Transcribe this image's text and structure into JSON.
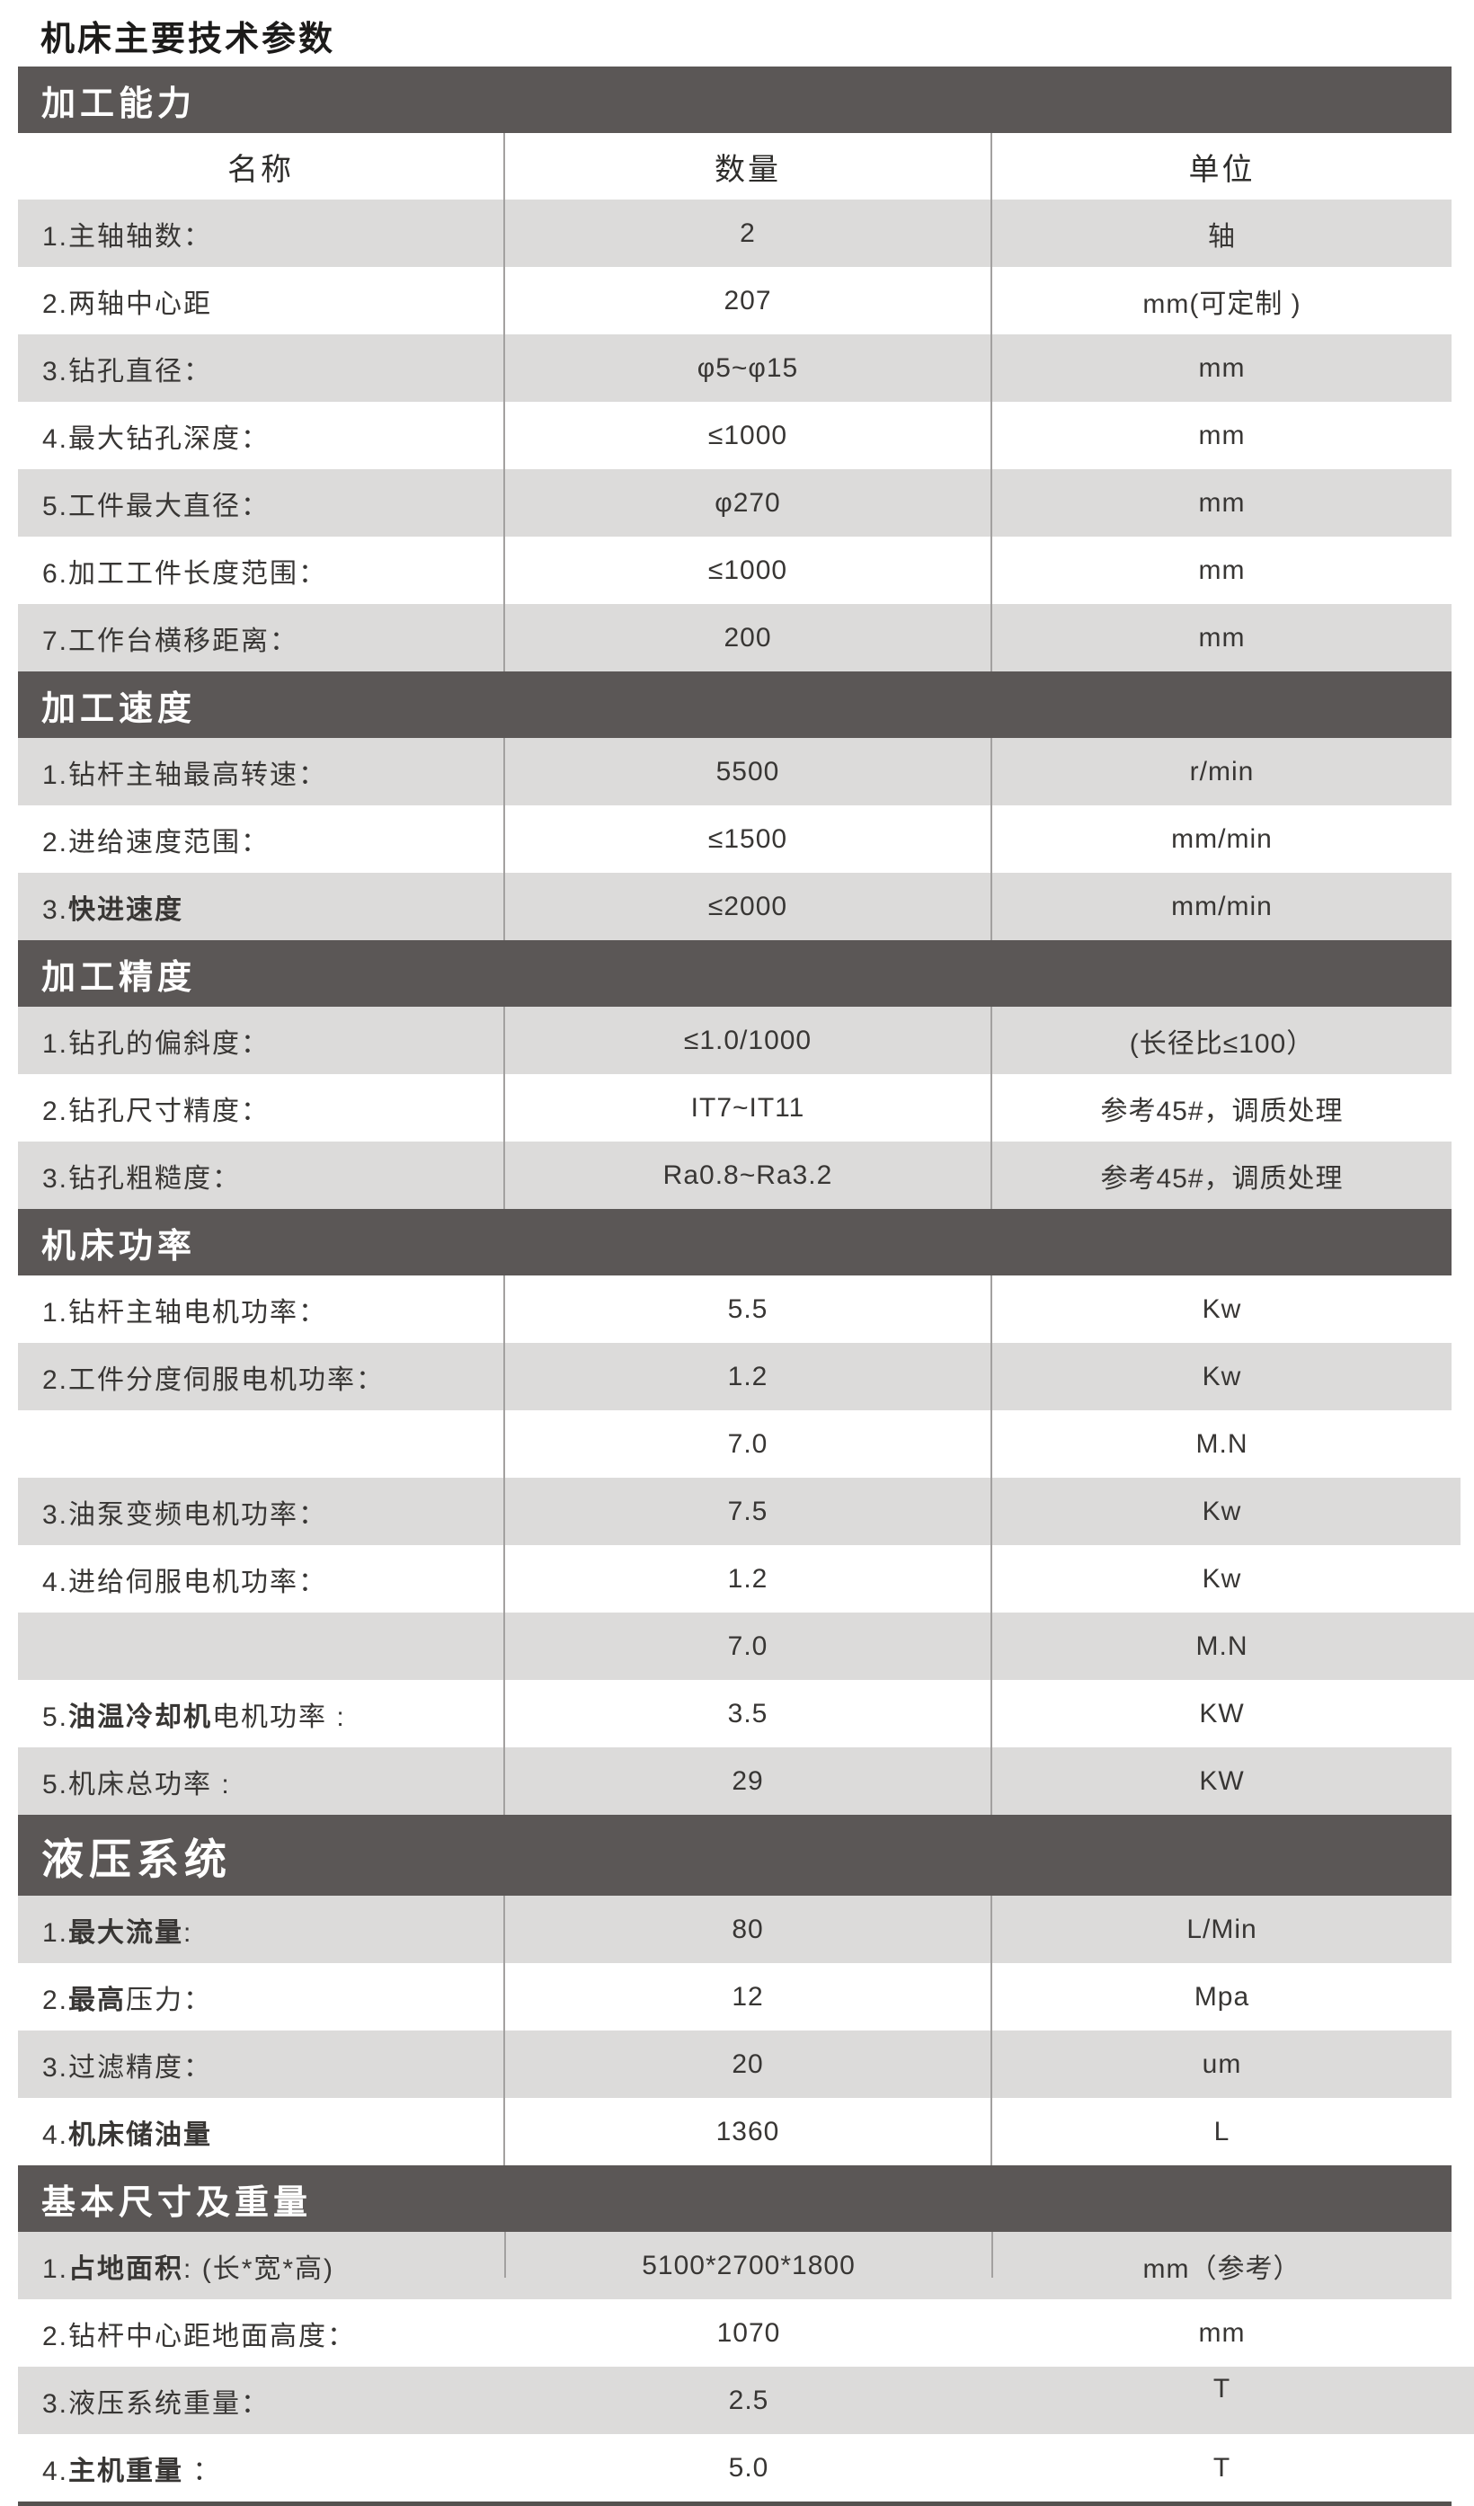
{
  "page_title": "机床主要技术参数",
  "colors": {
    "section_band_bg": "#5b5756",
    "section_band_text": "#ffffff",
    "row_gray_bg": "#dcdbda",
    "row_white_bg": "#ffffff",
    "text": "#383634",
    "divider": "#a3a1a0",
    "bottom_rule": "#55514f"
  },
  "columns": {
    "name": "名称",
    "qty": "数量",
    "unit": "单位"
  },
  "sections": [
    {
      "title": "加工能力",
      "large": false,
      "column_header": true,
      "rows": [
        {
          "label": "1.主轴轴数：",
          "value": "2",
          "unit": "轴",
          "shade": "gray"
        },
        {
          "label": "2.两轴中心距",
          "value": "207",
          "unit": "mm(可定制 )",
          "shade": "white"
        },
        {
          "label": "3.钻孔直径：",
          "value": "φ5~φ15",
          "unit": "mm",
          "shade": "gray"
        },
        {
          "label": "4.最大钻孔深度：",
          "value": "≤1000",
          "unit": "mm",
          "shade": "white"
        },
        {
          "label": "5.工件最大直径：",
          "value": "φ270",
          "unit": "mm",
          "shade": "gray"
        },
        {
          "label": "6.加工工件长度范围：",
          "value": "≤1000",
          "unit": "mm",
          "shade": "white"
        },
        {
          "label": "7.工作台横移距离：",
          "value": "200",
          "unit": "mm",
          "shade": "gray"
        }
      ]
    },
    {
      "title": "加工速度",
      "large": false,
      "rows": [
        {
          "label": "1.钻杆主轴最高转速：",
          "value": "5500",
          "unit": "r/min",
          "shade": "gray"
        },
        {
          "label": "2.进给速度范围：",
          "value": "≤1500",
          "unit": "mm/min",
          "shade": "white"
        },
        {
          "label": [
            {
              "t": "3.",
              "b": false
            },
            {
              "t": "快进速度",
              "b": true
            }
          ],
          "value": "≤2000",
          "unit": "mm/min",
          "shade": "gray"
        }
      ]
    },
    {
      "title": "加工精度",
      "large": false,
      "rows": [
        {
          "label": "1.钻孔的偏斜度：",
          "value": "≤1.0/1000",
          "unit": "(长径比≤100）",
          "shade": "gray"
        },
        {
          "label": "2.钻孔尺寸精度：",
          "value": "IT7~IT11",
          "unit": "参考45#，调质处理",
          "shade": "white"
        },
        {
          "label": "3.钻孔粗糙度：",
          "value": "Ra0.8~Ra3.2",
          "unit": "参考45#，调质处理",
          "shade": "gray"
        }
      ]
    },
    {
      "title": "机床功率",
      "large": false,
      "rows": [
        {
          "label": "1.钻杆主轴电机功率：",
          "value": "5.5",
          "unit": "Kw",
          "shade": "white"
        },
        {
          "label": "2.工件分度伺服电机功率：",
          "value": "1.2",
          "unit": "Kw",
          "shade": "gray"
        },
        {
          "label": "",
          "value": "7.0",
          "unit": "M.N",
          "shade": "white"
        },
        {
          "label": "3.油泵变频电机功率：",
          "value": "7.5",
          "unit": "Kw",
          "shade": "gray",
          "extend": 10
        },
        {
          "label": "4.进给伺服电机功率：",
          "value": "1.2",
          "unit": "Kw",
          "shade": "white"
        },
        {
          "label": "",
          "value": "7.0",
          "unit": "M.N",
          "shade": "gray",
          "extend": 25
        },
        {
          "label": [
            {
              "t": "5.",
              "b": false
            },
            {
              "t": "油温冷却机",
              "b": true
            },
            {
              "t": "电机功率 :",
              "b": false
            }
          ],
          "value": "3.5",
          "unit": "KW",
          "shade": "white"
        },
        {
          "label": "5.机床总功率 :",
          "value": "29",
          "unit": "KW",
          "shade": "gray"
        }
      ]
    },
    {
      "title": "液压系统",
      "large": true,
      "rows": [
        {
          "label": [
            {
              "t": "1.",
              "b": false
            },
            {
              "t": "最大流量",
              "b": true
            },
            {
              "t": ":",
              "b": false
            }
          ],
          "value": "80",
          "unit": "L/Min",
          "shade": "gray"
        },
        {
          "label": [
            {
              "t": "2.",
              "b": false
            },
            {
              "t": "最高",
              "b": true
            },
            {
              "t": "压力：",
              "b": false
            }
          ],
          "value": "12",
          "unit": "Mpa",
          "shade": "white"
        },
        {
          "label": "3.过滤精度：",
          "value": "20",
          "unit": "um",
          "shade": "gray"
        },
        {
          "label": [
            {
              "t": "4.",
              "b": false
            },
            {
              "t": "机床储油量",
              "b": true
            }
          ],
          "value": "1360",
          "unit": "L",
          "shade": "white"
        }
      ]
    },
    {
      "title": "基本尺寸及重量",
      "large": false,
      "dividers": false,
      "rows": [
        {
          "label": [
            {
              "t": "1.",
              "b": false
            },
            {
              "t": "占地面积",
              "b": true
            },
            {
              "t": ": (长*宽*高)",
              "b": false
            }
          ],
          "value": "5100*2700*1800",
          "unit": "mm（参考）",
          "shade": "gray",
          "dividers": true,
          "partial": true
        },
        {
          "label": "2.钻杆中心距地面高度：",
          "value": "1070",
          "unit": "mm",
          "shade": "white"
        },
        {
          "label": "3.液压系统重量：",
          "value": "2.5",
          "unit": "T",
          "shade": "gray",
          "extend": 25,
          "unit_valign": "top"
        },
        {
          "label": [
            {
              "t": "4.",
              "b": false
            },
            {
              "t": "主机重量",
              "b": true
            },
            {
              "t": " ：",
              "b": false
            }
          ],
          "value": "5.0",
          "unit": "T",
          "shade": "white"
        }
      ]
    }
  ]
}
